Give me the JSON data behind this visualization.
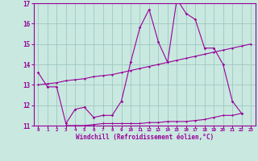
{
  "x": [
    0,
    1,
    2,
    3,
    4,
    5,
    6,
    7,
    8,
    9,
    10,
    11,
    12,
    13,
    14,
    15,
    16,
    17,
    18,
    19,
    20,
    21,
    22,
    23
  ],
  "y_main": [
    13.6,
    12.9,
    12.9,
    11.1,
    11.8,
    11.9,
    11.4,
    11.5,
    11.5,
    12.2,
    14.1,
    15.8,
    16.7,
    15.1,
    14.1,
    17.2,
    16.5,
    16.2,
    14.8,
    14.8,
    14.0,
    12.2,
    11.6,
    null
  ],
  "y_trend": [
    13.0,
    13.05,
    13.1,
    13.2,
    13.25,
    13.3,
    13.4,
    13.45,
    13.5,
    13.6,
    13.7,
    13.8,
    13.9,
    14.0,
    14.1,
    14.2,
    14.3,
    14.4,
    14.5,
    14.6,
    14.7,
    14.8,
    14.9,
    15.0
  ],
  "y_low": [
    null,
    null,
    null,
    11.0,
    11.0,
    11.0,
    11.05,
    11.1,
    11.1,
    11.1,
    11.1,
    11.1,
    11.15,
    11.15,
    11.2,
    11.2,
    11.2,
    11.25,
    11.3,
    11.4,
    11.5,
    11.5,
    11.6,
    null
  ],
  "xlim": [
    -0.5,
    23.5
  ],
  "ylim": [
    11,
    17
  ],
  "xticks": [
    0,
    1,
    2,
    3,
    4,
    5,
    6,
    7,
    8,
    9,
    10,
    11,
    12,
    13,
    14,
    15,
    16,
    17,
    18,
    19,
    20,
    21,
    22,
    23
  ],
  "yticks": [
    11,
    12,
    13,
    14,
    15,
    16,
    17
  ],
  "xlabel": "Windchill (Refroidissement éolien,°C)",
  "line_color": "#990099",
  "bg_color": "#c8e8e0",
  "grid_color": "#a0c8c0"
}
